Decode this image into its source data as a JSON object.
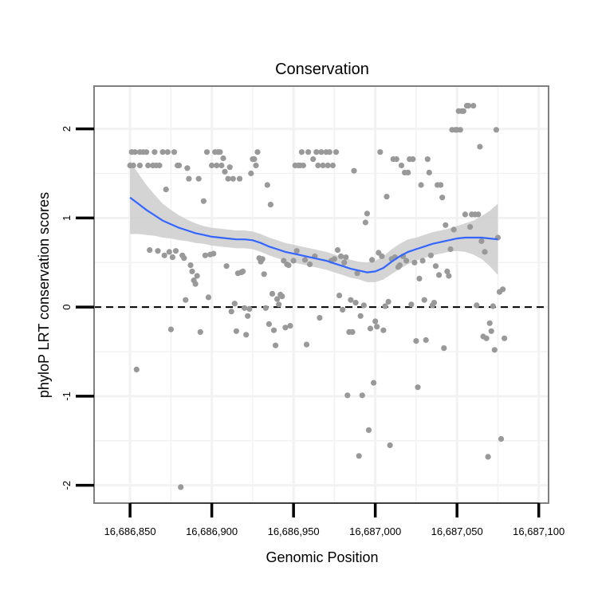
{
  "chart_data": {
    "type": "scatter",
    "title": "Conservation",
    "xlabel": "Genomic Position",
    "ylabel": "phyloP LRT conservation scores",
    "xlim": [
      16686828,
      16687106
    ],
    "ylim": [
      -2.2,
      2.48
    ],
    "x_ticks": [
      16686850,
      16686900,
      16686950,
      16687000,
      16687050,
      16687100
    ],
    "x_tick_labels": [
      "16,686,850",
      "16,686,900",
      "16,686,950",
      "16,687,000",
      "16,687,050",
      "16,687,100"
    ],
    "y_ticks": [
      -2,
      -1,
      0,
      1,
      2
    ],
    "y_tick_labels": [
      "-2",
      "-1",
      "0",
      "1",
      "2"
    ],
    "grid": true,
    "reference_line": {
      "y": 0,
      "style": "dashed",
      "color": "#000000"
    },
    "colors": {
      "points": "#999999",
      "smooth": "#3366ff",
      "band": "#cccccc",
      "panel_border": "#7f7f7f",
      "grid": "#f2f2f2"
    },
    "points": [
      [
        16686850,
        1.59
      ],
      [
        16686851,
        1.74
      ],
      [
        16686852,
        1.59
      ],
      [
        16686853,
        1.74
      ],
      [
        16686854,
        -0.7
      ],
      [
        16686856,
        1.59
      ],
      [
        16686856,
        1.74
      ],
      [
        16686858,
        1.74
      ],
      [
        16686860,
        1.74
      ],
      [
        16686861,
        1.59
      ],
      [
        16686862,
        0.64
      ],
      [
        16686864,
        1.59
      ],
      [
        16686865,
        1.74
      ],
      [
        16686866,
        1.59
      ],
      [
        16686867,
        0.63
      ],
      [
        16686868,
        1.59
      ],
      [
        16686870,
        1.74
      ],
      [
        16686871,
        0.58
      ],
      [
        16686872,
        1.32
      ],
      [
        16686873,
        1.74
      ],
      [
        16686874,
        0.62
      ],
      [
        16686875,
        -0.25
      ],
      [
        16686876,
        0.56
      ],
      [
        16686877,
        1.74
      ],
      [
        16686878,
        0.63
      ],
      [
        16686879,
        1.59
      ],
      [
        16686880,
        1.59
      ],
      [
        16686881,
        -2.02
      ],
      [
        16686882,
        0.58
      ],
      [
        16686883,
        0.55
      ],
      [
        16686884,
        0.08
      ],
      [
        16686885,
        1.56
      ],
      [
        16686886,
        1.44
      ],
      [
        16686887,
        0.47
      ],
      [
        16686888,
        0.4
      ],
      [
        16686889,
        0.3
      ],
      [
        16686890,
        0.26
      ],
      [
        16686891,
        0.35
      ],
      [
        16686892,
        1.44
      ],
      [
        16686893,
        -0.28
      ],
      [
        16686895,
        1.19
      ],
      [
        16686896,
        0.58
      ],
      [
        16686897,
        1.74
      ],
      [
        16686898,
        0.11
      ],
      [
        16686899,
        0.59
      ],
      [
        16686900,
        1.59
      ],
      [
        16686901,
        0.6
      ],
      [
        16686902,
        1.74
      ],
      [
        16686903,
        1.59
      ],
      [
        16686904,
        1.74
      ],
      [
        16686905,
        1.74
      ],
      [
        16686906,
        1.59
      ],
      [
        16686907,
        1.67
      ],
      [
        16686908,
        1.52
      ],
      [
        16686909,
        0.46
      ],
      [
        16686910,
        1.44
      ],
      [
        16686911,
        1.57
      ],
      [
        16686912,
        -0.05
      ],
      [
        16686913,
        1.44
      ],
      [
        16686914,
        0.04
      ],
      [
        16686915,
        -0.27
      ],
      [
        16686916,
        0.38
      ],
      [
        16686917,
        1.44
      ],
      [
        16686918,
        0.39
      ],
      [
        16686919,
        0.4
      ],
      [
        16686920,
        -0.01
      ],
      [
        16686921,
        -0.31
      ],
      [
        16686922,
        -0.1
      ],
      [
        16686923,
        -0.02
      ],
      [
        16686924,
        1.5
      ],
      [
        16686925,
        1.66
      ],
      [
        16686926,
        1.66
      ],
      [
        16686927,
        1.59
      ],
      [
        16686928,
        1.74
      ],
      [
        16686929,
        0.55
      ],
      [
        16686930,
        0.51
      ],
      [
        16686931,
        0.54
      ],
      [
        16686932,
        0.37
      ],
      [
        16686933,
        -0.01
      ],
      [
        16686934,
        1.37
      ],
      [
        16686935,
        -0.19
      ],
      [
        16686936,
        1.15
      ],
      [
        16686937,
        0.15
      ],
      [
        16686938,
        -0.26
      ],
      [
        16686939,
        -0.43
      ],
      [
        16686940,
        0.09
      ],
      [
        16686941,
        0.03
      ],
      [
        16686942,
        0.14
      ],
      [
        16686943,
        0.12
      ],
      [
        16686944,
        0.52
      ],
      [
        16686945,
        -0.23
      ],
      [
        16686946,
        0.48
      ],
      [
        16686947,
        0.47
      ],
      [
        16686948,
        -0.21
      ],
      [
        16686950,
        0.52
      ],
      [
        16686951,
        1.59
      ],
      [
        16686952,
        0.63
      ],
      [
        16686953,
        1.59
      ],
      [
        16686954,
        1.59
      ],
      [
        16686955,
        1.74
      ],
      [
        16686956,
        1.59
      ],
      [
        16686957,
        0.53
      ],
      [
        16686958,
        -0.42
      ],
      [
        16686959,
        1.74
      ],
      [
        16686960,
        0.48
      ],
      [
        16686962,
        1.66
      ],
      [
        16686963,
        0.57
      ],
      [
        16686964,
        1.74
      ],
      [
        16686965,
        1.59
      ],
      [
        16686966,
        -0.12
      ],
      [
        16686967,
        1.74
      ],
      [
        16686968,
        1.59
      ],
      [
        16686970,
        1.74
      ],
      [
        16686971,
        1.59
      ],
      [
        16686972,
        1.74
      ],
      [
        16686973,
        0.52
      ],
      [
        16686974,
        1.59
      ],
      [
        16686975,
        0.54
      ],
      [
        16686976,
        1.74
      ],
      [
        16686977,
        0.64
      ],
      [
        16686978,
        0.13
      ],
      [
        16686979,
        0.57
      ],
      [
        16686980,
        -0.03
      ],
      [
        16686981,
        0.5
      ],
      [
        16686982,
        0.56
      ],
      [
        16686983,
        -0.99
      ],
      [
        16686984,
        -0.28
      ],
      [
        16686985,
        0.08
      ],
      [
        16686986,
        -0.28
      ],
      [
        16686987,
        1.53
      ],
      [
        16686988,
        0.05
      ],
      [
        16686989,
        0.38
      ],
      [
        16686990,
        -1.67
      ],
      [
        16686991,
        -0.1
      ],
      [
        16686992,
        -0.99
      ],
      [
        16686993,
        0.02
      ],
      [
        16686994,
        0.95
      ],
      [
        16686995,
        1.05
      ],
      [
        16686996,
        -1.38
      ],
      [
        16686997,
        -0.24
      ],
      [
        16686998,
        0.53
      ],
      [
        16686999,
        -0.85
      ],
      [
        16687000,
        -0.16
      ],
      [
        16687001,
        -0.22
      ],
      [
        16687002,
        0.61
      ],
      [
        16687003,
        1.74
      ],
      [
        16687004,
        0.57
      ],
      [
        16687005,
        -0.26
      ],
      [
        16687006,
        0.01
      ],
      [
        16687007,
        1.24
      ],
      [
        16687008,
        0.06
      ],
      [
        16687009,
        -1.55
      ],
      [
        16687010,
        0.54
      ],
      [
        16687011,
        1.66
      ],
      [
        16687012,
        0.56
      ],
      [
        16687013,
        1.66
      ],
      [
        16687014,
        0.45
      ],
      [
        16687015,
        0.47
      ],
      [
        16687016,
        1.59
      ],
      [
        16687017,
        0.57
      ],
      [
        16687018,
        1.51
      ],
      [
        16687019,
        0.52
      ],
      [
        16687020,
        1.51
      ],
      [
        16687021,
        1.66
      ],
      [
        16687022,
        0.03
      ],
      [
        16687023,
        1.66
      ],
      [
        16687024,
        0.5
      ],
      [
        16687025,
        -0.38
      ],
      [
        16687026,
        -0.9
      ],
      [
        16687027,
        0.32
      ],
      [
        16687028,
        1.37
      ],
      [
        16687029,
        0.52
      ],
      [
        16687030,
        0.08
      ],
      [
        16687031,
        -0.37
      ],
      [
        16687032,
        1.66
      ],
      [
        16687033,
        1.51
      ],
      [
        16687034,
        0.58
      ],
      [
        16687035,
        0.02
      ],
      [
        16687036,
        0.05
      ],
      [
        16687037,
        0.46
      ],
      [
        16687038,
        1.37
      ],
      [
        16687039,
        0.36
      ],
      [
        16687040,
        1.37
      ],
      [
        16687041,
        1.23
      ],
      [
        16687042,
        -0.46
      ],
      [
        16687043,
        0.92
      ],
      [
        16687044,
        0.4
      ],
      [
        16687045,
        0.35
      ],
      [
        16687046,
        0.65
      ],
      [
        16687047,
        1.99
      ],
      [
        16687048,
        0.87
      ],
      [
        16687049,
        1.99
      ],
      [
        16687050,
        1.99
      ],
      [
        16687051,
        2.2
      ],
      [
        16687052,
        1.99
      ],
      [
        16687053,
        2.2
      ],
      [
        16687054,
        2.2
      ],
      [
        16687055,
        1.04
      ],
      [
        16687056,
        2.26
      ],
      [
        16687057,
        2.26
      ],
      [
        16687058,
        0.9
      ],
      [
        16687059,
        1.04
      ],
      [
        16687060,
        2.26
      ],
      [
        16687061,
        1.04
      ],
      [
        16687062,
        0.02
      ],
      [
        16687063,
        1.04
      ],
      [
        16687064,
        1.8
      ],
      [
        16687065,
        0.74
      ],
      [
        16687066,
        -0.33
      ],
      [
        16687067,
        0.62
      ],
      [
        16687068,
        -0.35
      ],
      [
        16687069,
        -1.68
      ],
      [
        16687070,
        -0.18
      ],
      [
        16687071,
        -0.27
      ],
      [
        16687072,
        0.01
      ],
      [
        16687073,
        -0.48
      ],
      [
        16687074,
        1.99
      ],
      [
        16687075,
        0.78
      ],
      [
        16687076,
        0.17
      ],
      [
        16687077,
        -1.48
      ],
      [
        16687078,
        0.2
      ],
      [
        16687079,
        -0.35
      ]
    ],
    "smooth_line": [
      [
        16686850,
        1.23
      ],
      [
        16686855,
        1.16
      ],
      [
        16686860,
        1.09
      ],
      [
        16686865,
        1.03
      ],
      [
        16686870,
        0.97
      ],
      [
        16686875,
        0.93
      ],
      [
        16686880,
        0.89
      ],
      [
        16686885,
        0.86
      ],
      [
        16686890,
        0.83
      ],
      [
        16686895,
        0.81
      ],
      [
        16686900,
        0.79
      ],
      [
        16686905,
        0.78
      ],
      [
        16686910,
        0.77
      ],
      [
        16686915,
        0.76
      ],
      [
        16686920,
        0.76
      ],
      [
        16686925,
        0.75
      ],
      [
        16686930,
        0.72
      ],
      [
        16686935,
        0.68
      ],
      [
        16686940,
        0.65
      ],
      [
        16686945,
        0.62
      ],
      [
        16686950,
        0.6
      ],
      [
        16686955,
        0.58
      ],
      [
        16686960,
        0.56
      ],
      [
        16686965,
        0.54
      ],
      [
        16686970,
        0.52
      ],
      [
        16686975,
        0.49
      ],
      [
        16686980,
        0.46
      ],
      [
        16686985,
        0.43
      ],
      [
        16686990,
        0.41
      ],
      [
        16686995,
        0.39
      ],
      [
        16687000,
        0.4
      ],
      [
        16687005,
        0.44
      ],
      [
        16687010,
        0.51
      ],
      [
        16687015,
        0.57
      ],
      [
        16687020,
        0.62
      ],
      [
        16687025,
        0.65
      ],
      [
        16687030,
        0.68
      ],
      [
        16687035,
        0.71
      ],
      [
        16687040,
        0.73
      ],
      [
        16687045,
        0.75
      ],
      [
        16687050,
        0.77
      ],
      [
        16687055,
        0.78
      ],
      [
        16687060,
        0.78
      ],
      [
        16687065,
        0.78
      ],
      [
        16687070,
        0.77
      ],
      [
        16687075,
        0.76
      ]
    ],
    "confidence_band_half_width": [
      0.41,
      0.34,
      0.28,
      0.23,
      0.19,
      0.16,
      0.14,
      0.12,
      0.11,
      0.1,
      0.1,
      0.1,
      0.1,
      0.1,
      0.1,
      0.1,
      0.1,
      0.1,
      0.1,
      0.1,
      0.1,
      0.1,
      0.1,
      0.1,
      0.1,
      0.1,
      0.1,
      0.1,
      0.1,
      0.11,
      0.12,
      0.13,
      0.14,
      0.14,
      0.14,
      0.13,
      0.13,
      0.13,
      0.13,
      0.13,
      0.14,
      0.16,
      0.19,
      0.24,
      0.31,
      0.4
    ]
  }
}
